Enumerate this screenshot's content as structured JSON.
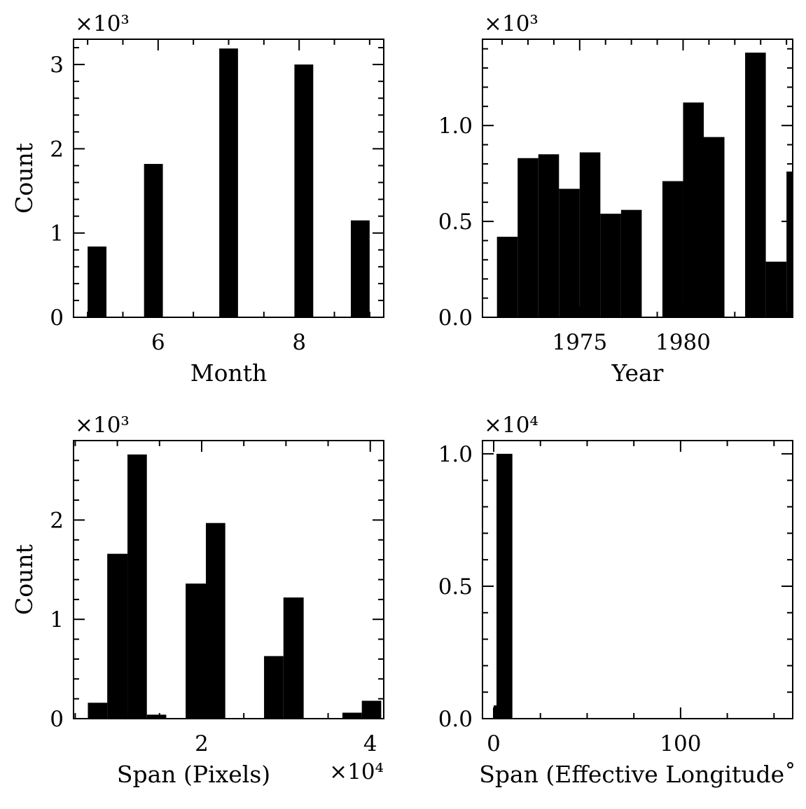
{
  "chart_data": [
    {
      "type": "bar",
      "xlabel": "Month",
      "ylabel": "Count",
      "multiplier": "×10³",
      "xlim": [
        4.8,
        9.2
      ],
      "ylim": [
        0,
        3.3
      ],
      "xticks": [
        {
          "value": 6,
          "label": "6"
        },
        {
          "value": 8,
          "label": "8"
        }
      ],
      "yticks": [
        {
          "value": 0,
          "label": "0"
        },
        {
          "value": 1,
          "label": "1"
        },
        {
          "value": 2,
          "label": "2"
        },
        {
          "value": 3,
          "label": "3"
        }
      ],
      "bins": [
        {
          "x0": 5.0,
          "x1": 5.267,
          "value": 0.84
        },
        {
          "x0": 5.8,
          "x1": 6.067,
          "value": 1.82
        },
        {
          "x0": 6.867,
          "x1": 7.133,
          "value": 3.19
        },
        {
          "x0": 7.933,
          "x1": 8.2,
          "value": 3.0
        },
        {
          "x0": 8.733,
          "x1": 9.0,
          "value": 1.15
        }
      ]
    },
    {
      "type": "bar",
      "xlabel": "Year",
      "ylabel": "",
      "multiplier": "×10³",
      "xlim": [
        1970.3,
        1985.3
      ],
      "ylim": [
        0,
        1.45
      ],
      "xticks": [
        {
          "value": 1975,
          "label": "1975"
        },
        {
          "value": 1980,
          "label": "1980"
        }
      ],
      "yticks": [
        {
          "value": 0,
          "label": "0.0"
        },
        {
          "value": 0.5,
          "label": "0.5"
        },
        {
          "value": 1.0,
          "label": "1.0"
        }
      ],
      "bins": [
        {
          "x0": 1971.0,
          "x1": 1972.0,
          "value": 0.42
        },
        {
          "x0": 1972.0,
          "x1": 1973.0,
          "value": 0.83
        },
        {
          "x0": 1973.0,
          "x1": 1974.0,
          "value": 0.85
        },
        {
          "x0": 1974.0,
          "x1": 1975.0,
          "value": 0.67
        },
        {
          "x0": 1975.0,
          "x1": 1976.0,
          "value": 0.86
        },
        {
          "x0": 1976.0,
          "x1": 1977.0,
          "value": 0.54
        },
        {
          "x0": 1977.0,
          "x1": 1978.0,
          "value": 0.56
        },
        {
          "x0": 1979.0,
          "x1": 1980.0,
          "value": 0.71
        },
        {
          "x0": 1980.0,
          "x1": 1981.0,
          "value": 1.12
        },
        {
          "x0": 1981.0,
          "x1": 1982.0,
          "value": 0.94
        },
        {
          "x0": 1983.0,
          "x1": 1984.0,
          "value": 1.38
        },
        {
          "x0": 1984.0,
          "x1": 1985.0,
          "value": 0.29
        },
        {
          "x0": 1985.0,
          "x1": 1986.0,
          "value": 0.76
        }
      ]
    },
    {
      "type": "bar",
      "xlabel": "Span (Pixels)",
      "ylabel": "Count",
      "multiplier": "×10³",
      "xmultiplier": "×10⁴",
      "xlim": [
        0.48,
        4.16
      ],
      "ylim": [
        0,
        2.8
      ],
      "xticks": [
        {
          "value": 2,
          "label": "2"
        },
        {
          "value": 4,
          "label": "4"
        }
      ],
      "yticks": [
        {
          "value": 0,
          "label": "0"
        },
        {
          "value": 1,
          "label": "1"
        },
        {
          "value": 2,
          "label": "2"
        }
      ],
      "bins": [
        {
          "x0": 0.65,
          "x1": 0.88,
          "value": 0.16
        },
        {
          "x0": 0.88,
          "x1": 1.12,
          "value": 1.66
        },
        {
          "x0": 1.12,
          "x1": 1.35,
          "value": 2.66
        },
        {
          "x0": 1.35,
          "x1": 1.58,
          "value": 0.04
        },
        {
          "x0": 1.81,
          "x1": 2.05,
          "value": 1.36
        },
        {
          "x0": 2.05,
          "x1": 2.28,
          "value": 1.97
        },
        {
          "x0": 2.74,
          "x1": 2.97,
          "value": 0.63
        },
        {
          "x0": 2.97,
          "x1": 3.21,
          "value": 1.22
        },
        {
          "x0": 3.67,
          "x1": 3.9,
          "value": 0.06
        },
        {
          "x0": 3.9,
          "x1": 4.13,
          "value": 0.18
        }
      ]
    },
    {
      "type": "bar",
      "xlabel": "Span (Effective Longitude˚",
      "ylabel": "",
      "multiplier": "×10⁴",
      "xlim": [
        -6,
        160
      ],
      "ylim": [
        0,
        1.05
      ],
      "xticks": [
        {
          "value": 0,
          "label": "0"
        },
        {
          "value": 100,
          "label": "100"
        }
      ],
      "yticks": [
        {
          "value": 0,
          "label": "0.0"
        },
        {
          "value": 0.5,
          "label": "0.5"
        },
        {
          "value": 1.0,
          "label": "1.0"
        }
      ],
      "bins": [
        {
          "x0": 0.0,
          "x1": 1.5,
          "value": 0.05
        },
        {
          "x0": 1.5,
          "x1": 10.0,
          "value": 1.0
        }
      ]
    }
  ]
}
